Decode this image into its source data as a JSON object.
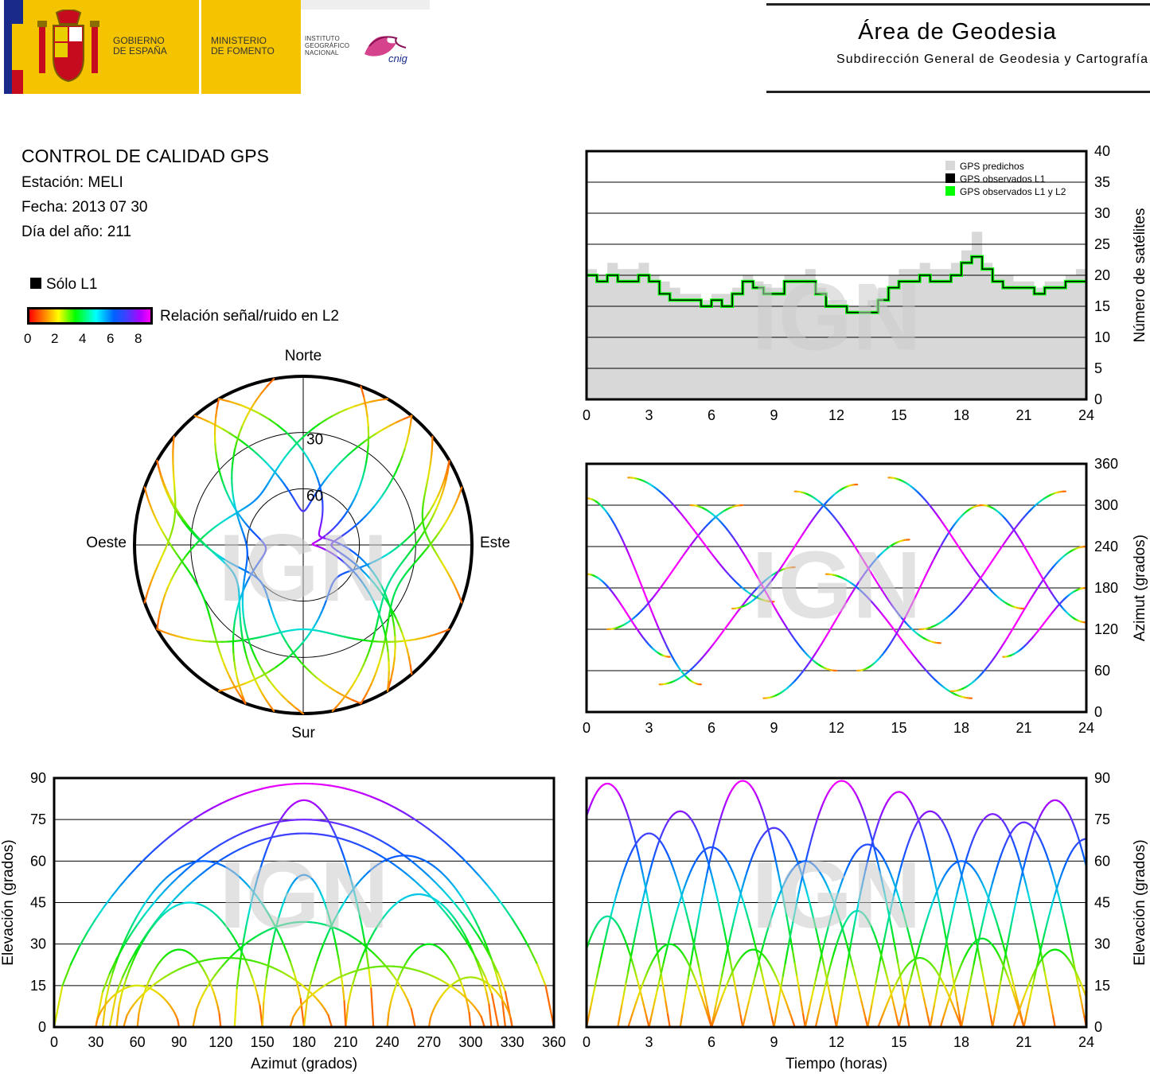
{
  "header": {
    "gobierno": [
      "GOBIERNO",
      "DE ESPAÑA"
    ],
    "ministerio": [
      "MINISTERIO",
      "DE FOMENTO"
    ],
    "instituto": [
      "INSTITUTO",
      "GEOGRÁFICO",
      "NACIONAL"
    ],
    "cnig": "cnig",
    "area_title": "Área de Geodesia",
    "area_subtitle": "Subdirección General de Geodesia y Cartografía",
    "colors": {
      "banner": "#f5c400",
      "flag_red": "#c60b1e",
      "eu_blue": "#1a2a8a",
      "cnig": "#cc2277"
    }
  },
  "info": {
    "title": "CONTROL DE CALIDAD GPS",
    "station": "Estación: MELI",
    "date": "Fecha: 2013 07 30",
    "doy": "Día del año: 211",
    "l1_only": "Sólo L1",
    "snr_label": "Relación señal/ruido en L2",
    "snr_ticks": [
      "0",
      "2",
      "4",
      "6",
      "8"
    ]
  },
  "watermark": "IGN",
  "chart_data": [
    {
      "id": "satellite-count",
      "type": "area",
      "x_ticks": [
        "0",
        "3",
        "6",
        "9",
        "12",
        "15",
        "18",
        "21",
        "24"
      ],
      "y_ticks": [
        "0",
        "5",
        "10",
        "15",
        "20",
        "25",
        "30",
        "35",
        "40"
      ],
      "xlim": [
        0,
        24
      ],
      "ylim": [
        0,
        40
      ],
      "ylabel": "Número de satélites",
      "grid": "horizontal",
      "legend_position": "top-right",
      "series": [
        {
          "name": "GPS predichos",
          "color": "#d8d8d8",
          "x": [
            0,
            0.5,
            1,
            1.5,
            2,
            2.5,
            3,
            3.5,
            4,
            4.5,
            5,
            5.5,
            6,
            6.5,
            7,
            7.5,
            8,
            8.5,
            9,
            9.5,
            10,
            10.5,
            11,
            11.5,
            12,
            12.5,
            13,
            13.5,
            14,
            14.5,
            15,
            15.5,
            16,
            16.5,
            17,
            17.5,
            18,
            18.5,
            19,
            19.5,
            20,
            20.5,
            21,
            21.5,
            22,
            22.5,
            23,
            23.5,
            24
          ],
          "values": [
            21,
            20,
            22,
            21,
            21,
            22,
            20,
            19,
            18,
            17,
            17,
            16,
            17,
            17,
            18,
            20,
            19,
            18,
            18,
            20,
            20,
            21,
            18,
            16,
            16,
            15,
            15,
            16,
            18,
            20,
            21,
            21,
            22,
            21,
            21,
            22,
            24,
            27,
            22,
            20,
            20,
            19,
            19,
            18,
            19,
            19,
            20,
            21,
            20
          ]
        },
        {
          "name": "GPS observados L1",
          "color": "#000000",
          "x": [
            0,
            0.5,
            1,
            1.5,
            2,
            2.5,
            3,
            3.5,
            4,
            4.5,
            5,
            5.5,
            6,
            6.5,
            7,
            7.5,
            8,
            8.5,
            9,
            9.5,
            10,
            10.5,
            11,
            11.5,
            12,
            12.5,
            13,
            13.5,
            14,
            14.5,
            15,
            15.5,
            16,
            16.5,
            17,
            17.5,
            18,
            18.5,
            19,
            19.5,
            20,
            20.5,
            21,
            21.5,
            22,
            22.5,
            23,
            23.5,
            24
          ],
          "values": [
            20,
            19,
            20,
            19,
            19,
            20,
            19,
            17,
            16,
            16,
            16,
            15,
            16,
            15,
            17,
            19,
            18,
            17,
            17,
            19,
            19,
            19,
            17,
            15,
            15,
            14,
            14,
            14,
            16,
            18,
            19,
            19,
            20,
            19,
            19,
            20,
            22,
            23,
            21,
            19,
            18,
            18,
            18,
            17,
            18,
            18,
            19,
            19,
            19
          ]
        },
        {
          "name": "GPS observados L1 y L2",
          "color": "#00ff00",
          "x": [
            0,
            0.5,
            1,
            1.5,
            2,
            2.5,
            3,
            3.5,
            4,
            4.5,
            5,
            5.5,
            6,
            6.5,
            7,
            7.5,
            8,
            8.5,
            9,
            9.5,
            10,
            10.5,
            11,
            11.5,
            12,
            12.5,
            13,
            13.5,
            14,
            14.5,
            15,
            15.5,
            16,
            16.5,
            17,
            17.5,
            18,
            18.5,
            19,
            19.5,
            20,
            20.5,
            21,
            21.5,
            22,
            22.5,
            23,
            23.5,
            24
          ],
          "values": [
            20,
            19,
            20,
            19,
            19,
            20,
            19,
            17,
            16,
            16,
            16,
            15,
            16,
            15,
            17,
            19,
            18,
            17,
            17,
            19,
            19,
            19,
            17,
            15,
            15,
            14,
            14,
            14,
            16,
            18,
            19,
            19,
            20,
            19,
            19,
            20,
            22,
            23,
            21,
            19,
            18,
            18,
            18,
            17,
            18,
            18,
            19,
            19,
            19
          ]
        }
      ]
    },
    {
      "id": "skyplot",
      "type": "scatter",
      "projection": "polar",
      "direction_labels": {
        "north": "Norte",
        "south": "Sur",
        "east": "Este",
        "west": "Oeste"
      },
      "elevation_rings": [
        "30",
        "60"
      ],
      "series": [
        {
          "start_az": 320,
          "max_el": 72,
          "end_az": 40
        },
        {
          "start_az": 300,
          "max_el": 60,
          "end_az": 160
        },
        {
          "start_az": 210,
          "max_el": 65,
          "end_az": 60
        },
        {
          "start_az": 40,
          "max_el": 75,
          "end_az": 140
        },
        {
          "start_az": 200,
          "max_el": 70,
          "end_az": 330
        },
        {
          "start_az": 190,
          "max_el": 50,
          "end_az": 300
        },
        {
          "start_az": 170,
          "max_el": 40,
          "end_az": 60
        },
        {
          "start_az": 330,
          "max_el": 80,
          "end_az": 150
        },
        {
          "start_az": 30,
          "max_el": 55,
          "end_az": 240
        },
        {
          "start_az": 290,
          "max_el": 30,
          "end_az": 200
        },
        {
          "start_az": 70,
          "max_el": 35,
          "end_az": 160
        },
        {
          "start_az": 150,
          "max_el": 85,
          "end_az": 20
        },
        {
          "start_az": 240,
          "max_el": 45,
          "end_az": 120
        },
        {
          "start_az": 310,
          "max_el": 20,
          "end_az": 250
        },
        {
          "start_az": 50,
          "max_el": 25,
          "end_az": 110
        },
        {
          "start_az": 180,
          "max_el": 60,
          "end_az": 350
        }
      ]
    },
    {
      "id": "azimuth-vs-time",
      "type": "scatter",
      "x_ticks": [
        "0",
        "3",
        "6",
        "9",
        "12",
        "15",
        "18",
        "21",
        "24"
      ],
      "y_ticks": [
        "0",
        "60",
        "120",
        "180",
        "240",
        "300",
        "360"
      ],
      "xlim": [
        0,
        24
      ],
      "ylim": [
        0,
        360
      ],
      "ylabel": "Azimut (grados)",
      "grid": "horizontal",
      "series": [
        {
          "t0": 0.0,
          "t1": 5.5,
          "az0": 310,
          "az1": 40
        },
        {
          "t0": 1.0,
          "t1": 7.5,
          "az0": 120,
          "az1": 300
        },
        {
          "t0": 2.0,
          "t1": 9.0,
          "az0": 340,
          "az1": 160
        },
        {
          "t0": 3.5,
          "t1": 10.0,
          "az0": 40,
          "az1": 210
        },
        {
          "t0": 5.0,
          "t1": 12.0,
          "az0": 300,
          "az1": 60
        },
        {
          "t0": 7.0,
          "t1": 13.0,
          "az0": 150,
          "az1": 330
        },
        {
          "t0": 8.5,
          "t1": 15.5,
          "az0": 20,
          "az1": 250
        },
        {
          "t0": 10.0,
          "t1": 17.0,
          "az0": 320,
          "az1": 100
        },
        {
          "t0": 11.5,
          "t1": 18.5,
          "az0": 200,
          "az1": 20
        },
        {
          "t0": 13.0,
          "t1": 19.0,
          "az0": 60,
          "az1": 300
        },
        {
          "t0": 14.5,
          "t1": 21.0,
          "az0": 340,
          "az1": 150
        },
        {
          "t0": 16.0,
          "t1": 23.0,
          "az0": 120,
          "az1": 320
        },
        {
          "t0": 17.5,
          "t1": 24.0,
          "az0": 30,
          "az1": 240
        },
        {
          "t0": 19.0,
          "t1": 24.0,
          "az0": 300,
          "az1": 130
        },
        {
          "t0": 0.0,
          "t1": 4.0,
          "az0": 200,
          "az1": 80
        },
        {
          "t0": 20.0,
          "t1": 24.0,
          "az0": 80,
          "az1": 180
        }
      ]
    },
    {
      "id": "elevation-vs-azimuth",
      "type": "scatter",
      "x_ticks": [
        "0",
        "30",
        "60",
        "90",
        "120",
        "150",
        "180",
        "210",
        "240",
        "270",
        "300",
        "330",
        "360"
      ],
      "y_ticks": [
        "0",
        "15",
        "30",
        "45",
        "60",
        "75",
        "90"
      ],
      "xlim": [
        0,
        360
      ],
      "ylim": [
        0,
        90
      ],
      "xlabel": "Azimut (grados)",
      "ylabel": "Elevación (grados)",
      "grid": "horizontal",
      "series": [
        {
          "az0": 30,
          "az1": 330,
          "max_el": 75
        },
        {
          "az0": 40,
          "az1": 320,
          "max_el": 70
        },
        {
          "az0": 35,
          "az1": 180,
          "max_el": 60
        },
        {
          "az0": 180,
          "az1": 325,
          "max_el": 62
        },
        {
          "az0": 45,
          "az1": 150,
          "max_el": 45
        },
        {
          "az0": 210,
          "az1": 315,
          "max_el": 48
        },
        {
          "az0": 60,
          "az1": 120,
          "max_el": 28
        },
        {
          "az0": 240,
          "az1": 300,
          "max_el": 30
        },
        {
          "az0": 30,
          "az1": 90,
          "max_el": 15
        },
        {
          "az0": 270,
          "az1": 330,
          "max_el": 18
        },
        {
          "az0": 130,
          "az1": 230,
          "max_el": 82
        },
        {
          "az0": 150,
          "az1": 210,
          "max_el": 55
        },
        {
          "az0": 100,
          "az1": 260,
          "max_el": 38
        },
        {
          "az0": 0,
          "az1": 360,
          "max_el": 88
        },
        {
          "az0": 50,
          "az1": 200,
          "max_el": 25
        },
        {
          "az0": 170,
          "az1": 310,
          "max_el": 22
        }
      ]
    },
    {
      "id": "elevation-vs-time",
      "type": "scatter",
      "x_ticks": [
        "0",
        "3",
        "6",
        "9",
        "12",
        "15",
        "18",
        "21",
        "24"
      ],
      "y_ticks": [
        "0",
        "15",
        "30",
        "45",
        "60",
        "75",
        "90"
      ],
      "xlim": [
        0,
        24
      ],
      "ylim": [
        0,
        90
      ],
      "xlabel": "Tiempo (horas)",
      "ylabel": "Elevación (grados)",
      "grid": "horizontal",
      "series": [
        {
          "t0": -2.0,
          "t1": 4.0,
          "max_el": 88
        },
        {
          "t0": 0.0,
          "t1": 6.0,
          "max_el": 70
        },
        {
          "t0": 1.5,
          "t1": 7.5,
          "max_el": 78
        },
        {
          "t0": 3.0,
          "t1": 9.0,
          "max_el": 65
        },
        {
          "t0": 4.5,
          "t1": 10.5,
          "max_el": 89
        },
        {
          "t0": 6.0,
          "t1": 12.0,
          "max_el": 72
        },
        {
          "t0": 7.5,
          "t1": 13.5,
          "max_el": 60
        },
        {
          "t0": 9.0,
          "t1": 15.5,
          "max_el": 89
        },
        {
          "t0": 10.5,
          "t1": 16.5,
          "max_el": 66
        },
        {
          "t0": 12.0,
          "t1": 18.0,
          "max_el": 85
        },
        {
          "t0": 13.5,
          "t1": 19.5,
          "max_el": 78
        },
        {
          "t0": 15.0,
          "t1": 21.0,
          "max_el": 60
        },
        {
          "t0": 16.5,
          "t1": 22.5,
          "max_el": 77
        },
        {
          "t0": 18.0,
          "t1": 24.0,
          "max_el": 74
        },
        {
          "t0": 19.5,
          "t1": 25.5,
          "max_el": 82
        },
        {
          "t0": 21.0,
          "t1": 27.0,
          "max_el": 68
        },
        {
          "t0": -1.0,
          "t1": 3.0,
          "max_el": 40
        },
        {
          "t0": 2.0,
          "t1": 6.0,
          "max_el": 30
        },
        {
          "t0": 6.0,
          "t1": 10.0,
          "max_el": 28
        },
        {
          "t0": 11.0,
          "t1": 15.0,
          "max_el": 42
        },
        {
          "t0": 14.0,
          "t1": 18.0,
          "max_el": 25
        },
        {
          "t0": 17.0,
          "t1": 21.0,
          "max_el": 32
        },
        {
          "t0": 20.5,
          "t1": 24.5,
          "max_el": 28
        }
      ]
    }
  ]
}
